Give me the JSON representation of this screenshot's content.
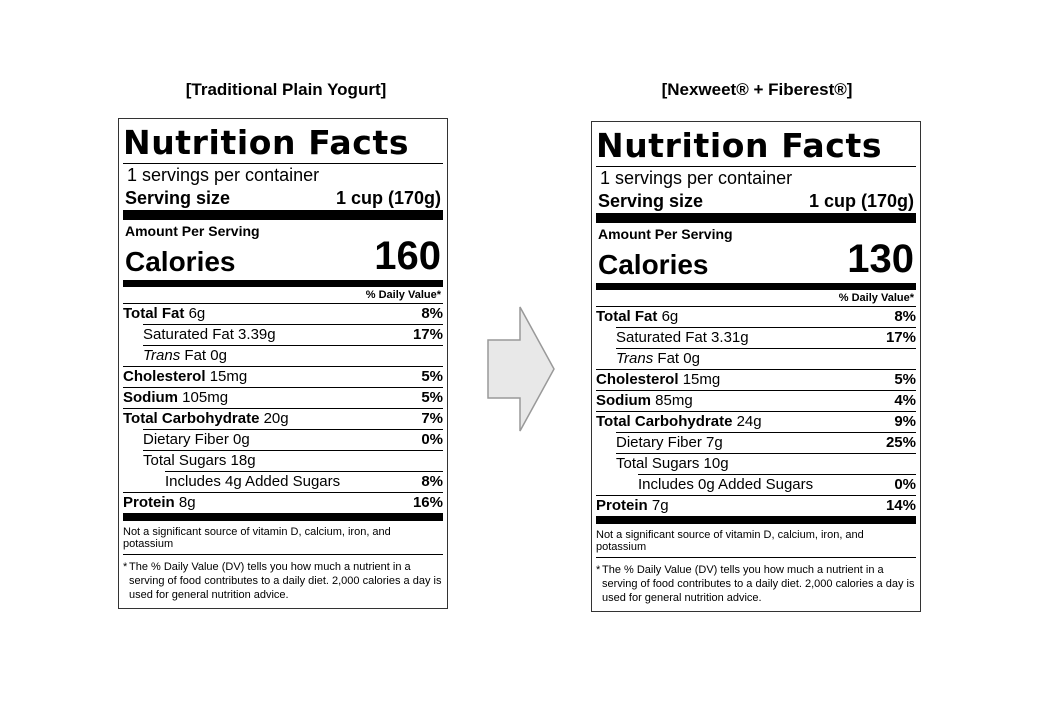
{
  "left": {
    "title": "[Traditional Plain Yogurt]",
    "heading": "Nutrition Facts",
    "servings": "1 servings per container",
    "serving_size_label": "Serving size",
    "serving_size_value": "1 cup (170g)",
    "amount_label": "Amount Per Serving",
    "calories_label": "Calories",
    "calories_value": "160",
    "dv_header": "% Daily Value*",
    "total_fat": {
      "label": "Total Fat",
      "value": "6g",
      "pct": "8%"
    },
    "sat_fat": {
      "label": "Saturated Fat 3.39g",
      "pct": "17%"
    },
    "trans_fat": {
      "label_italic": "Trans",
      "label": "Fat 0g"
    },
    "cholesterol": {
      "label": "Cholesterol",
      "value": "15mg",
      "pct": "5%"
    },
    "sodium": {
      "label": "Sodium",
      "value": "105mg",
      "pct": "5%"
    },
    "carb": {
      "label": "Total Carbohydrate",
      "value": "20g",
      "pct": "7%"
    },
    "fiber": {
      "label": "Dietary Fiber 0g",
      "pct": "0%"
    },
    "sugars": {
      "label": "Total Sugars 18g"
    },
    "added": {
      "label": "Includes 4g Added Sugars",
      "pct": "8%"
    },
    "protein": {
      "label": "Protein",
      "value": "8g",
      "pct": "16%"
    },
    "note": "Not a significant source of vitamin D, calcium, iron, and potassium",
    "footnote_star": "*",
    "footnote": "The % Daily Value (DV) tells you how much a nutrient in a serving of food contributes to a daily diet. 2,000 calories a day is used for general nutrition advice."
  },
  "right": {
    "title": "[Nexweet® + Fiberest®]",
    "heading": "Nutrition Facts",
    "servings": "1 servings per container",
    "serving_size_label": "Serving size",
    "serving_size_value": "1 cup (170g)",
    "amount_label": "Amount Per Serving",
    "calories_label": "Calories",
    "calories_value": "130",
    "dv_header": "% Daily Value*",
    "total_fat": {
      "label": "Total Fat",
      "value": "6g",
      "pct": "8%"
    },
    "sat_fat": {
      "label": "Saturated Fat 3.31g",
      "pct": "17%"
    },
    "trans_fat": {
      "label_italic": "Trans",
      "label": "Fat 0g"
    },
    "cholesterol": {
      "label": "Cholesterol",
      "value": "15mg",
      "pct": "5%"
    },
    "sodium": {
      "label": "Sodium",
      "value": "85mg",
      "pct": "4%"
    },
    "carb": {
      "label": "Total Carbohydrate",
      "value": "24g",
      "pct": "9%"
    },
    "fiber": {
      "label": "Dietary Fiber 7g",
      "pct": "25%"
    },
    "sugars": {
      "label": "Total Sugars 10g"
    },
    "added": {
      "label": "Includes 0g Added Sugars",
      "pct": "0%"
    },
    "protein": {
      "label": "Protein",
      "value": "7g",
      "pct": "14%"
    },
    "note": "Not a significant source of vitamin D, calcium, iron, and potassium",
    "footnote_star": "*",
    "footnote": "The % Daily Value (DV) tells you how much a nutrient in a serving of food contributes to a daily diet. 2,000 calories a day is used for general nutrition advice."
  },
  "arrow": {
    "icon": "right-arrow-icon",
    "fill": "#e8e8e8",
    "stroke": "#999999"
  }
}
